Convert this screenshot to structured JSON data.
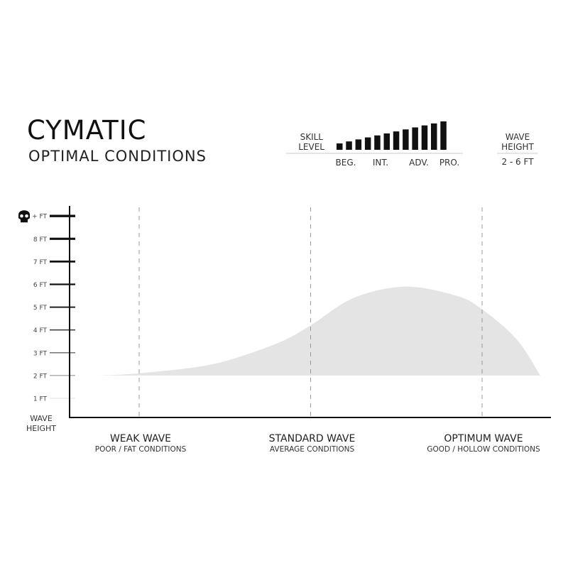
{
  "header": {
    "title": "CYMATIC",
    "subtitle": "OPTIMAL CONDITIONS"
  },
  "skill_level": {
    "label_line1": "SKILL",
    "label_line2": "LEVEL",
    "levels": [
      "BEG.",
      "INT.",
      "ADV.",
      "PRO."
    ],
    "bar_count": 12,
    "bar_color": "#111111"
  },
  "wave_height_box": {
    "label_line1": "WAVE",
    "label_line2": "HEIGHT",
    "value": "2 - 6 FT"
  },
  "chart_data": {
    "type": "area",
    "title": "",
    "ylabel_line1": "WAVE",
    "ylabel_line2": "HEIGHT",
    "y_ticks": [
      {
        "value": 1,
        "label": "1 FT"
      },
      {
        "value": 2,
        "label": "2 FT"
      },
      {
        "value": 3,
        "label": "3 FT"
      },
      {
        "value": 4,
        "label": "4 FT"
      },
      {
        "value": 5,
        "label": "5 FT"
      },
      {
        "value": 6,
        "label": "6 FT"
      },
      {
        "value": 7,
        "label": "7 FT"
      },
      {
        "value": 8,
        "label": "8 FT"
      },
      {
        "value": 9,
        "label": "+ FT",
        "icon": "skull-icon"
      }
    ],
    "ylim": [
      0,
      9
    ],
    "categories": [
      {
        "title": "WEAK WAVE",
        "subtitle": "POOR / FAT CONDITIONS"
      },
      {
        "title": "STANDARD WAVE",
        "subtitle": "AVERAGE CONDITIONS"
      },
      {
        "title": "OPTIMUM WAVE",
        "subtitle": "GOOD / HOLLOW CONDITIONS"
      }
    ],
    "category_gridlines": "dashed",
    "fill_color": "#e4e4e4",
    "baseline_ft": 2,
    "curve": [
      {
        "x": -0.25,
        "y": 2.0
      },
      {
        "x": 0.0,
        "y": 2.1
      },
      {
        "x": 0.43,
        "y": 2.5
      },
      {
        "x": 0.8,
        "y": 3.4
      },
      {
        "x": 1.0,
        "y": 4.2
      },
      {
        "x": 1.25,
        "y": 5.4
      },
      {
        "x": 1.55,
        "y": 5.9
      },
      {
        "x": 1.85,
        "y": 5.5
      },
      {
        "x": 2.0,
        "y": 4.9
      },
      {
        "x": 2.2,
        "y": 3.6
      },
      {
        "x": 2.34,
        "y": 2.0
      }
    ]
  }
}
